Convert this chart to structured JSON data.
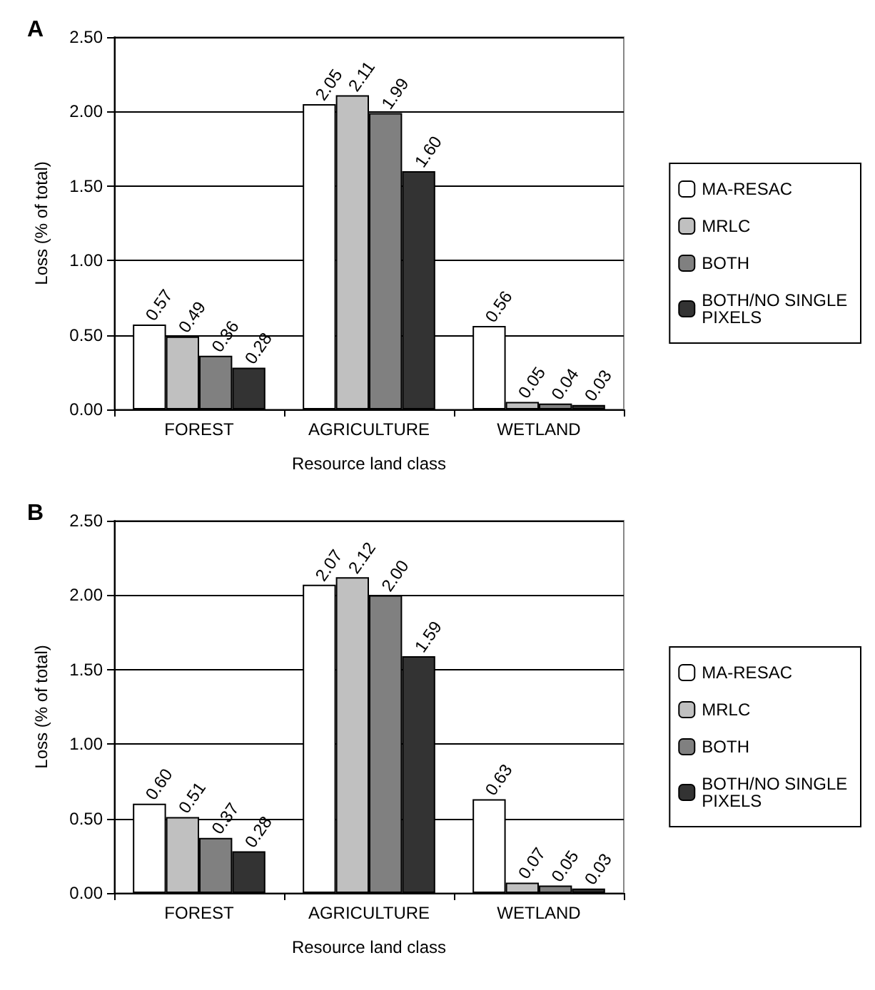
{
  "chart_data": [
    {
      "type": "bar",
      "title": "A",
      "xlabel": "Resource land class",
      "ylabel": "Loss (% of total)",
      "categories": [
        "FOREST",
        "AGRICULTURE",
        "WETLAND"
      ],
      "series": [
        {
          "name": "MA-RESAC",
          "color": "#ffffff",
          "values": [
            0.57,
            2.05,
            0.56
          ]
        },
        {
          "name": "MRLC",
          "color": "#c0c0c0",
          "values": [
            0.49,
            2.11,
            0.05
          ]
        },
        {
          "name": "BOTH",
          "color": "#808080",
          "values": [
            0.36,
            1.99,
            0.04
          ]
        },
        {
          "name": "BOTH/NO SINGLE PIXELS",
          "color": "#333333",
          "values": [
            0.28,
            1.6,
            0.03
          ]
        }
      ],
      "value_labels": [
        [
          "0.57",
          "2.05",
          "0.56"
        ],
        [
          "0.49",
          "2.11",
          "0.05"
        ],
        [
          "0.36",
          "1.99",
          "0.04"
        ],
        [
          "0.28",
          "1.60",
          "0.03"
        ]
      ],
      "ylim": [
        0,
        2.5
      ],
      "yticks": [
        {
          "value": 0,
          "label": "0.00"
        },
        {
          "value": 0.5,
          "label": "0.50"
        },
        {
          "value": 1,
          "label": "1.00"
        },
        {
          "value": 1.5,
          "label": "1.50"
        },
        {
          "value": 2,
          "label": "2.00"
        },
        {
          "value": 2.5,
          "label": "2.50"
        }
      ],
      "grid": "y",
      "legend": "right"
    },
    {
      "type": "bar",
      "title": "B",
      "xlabel": "Resource land class",
      "ylabel": "Loss (% of total)",
      "categories": [
        "FOREST",
        "AGRICULTURE",
        "WETLAND"
      ],
      "series": [
        {
          "name": "MA-RESAC",
          "color": "#ffffff",
          "values": [
            0.6,
            2.07,
            0.63
          ]
        },
        {
          "name": "MRLC",
          "color": "#c0c0c0",
          "values": [
            0.51,
            2.12,
            0.07
          ]
        },
        {
          "name": "BOTH",
          "color": "#808080",
          "values": [
            0.37,
            2.0,
            0.05
          ]
        },
        {
          "name": "BOTH/NO SINGLE PIXELS",
          "color": "#333333",
          "values": [
            0.28,
            1.59,
            0.03
          ]
        }
      ],
      "value_labels": [
        [
          "0.60",
          "2.07",
          "0.63"
        ],
        [
          "0.51",
          "2.12",
          "0.07"
        ],
        [
          "0.37",
          "2.00",
          "0.05"
        ],
        [
          "0.28",
          "1.59",
          "0.03"
        ]
      ],
      "ylim": [
        0,
        2.5
      ],
      "yticks": [
        {
          "value": 0,
          "label": "0.00"
        },
        {
          "value": 0.5,
          "label": "0.50"
        },
        {
          "value": 1,
          "label": "1.00"
        },
        {
          "value": 1.5,
          "label": "1.50"
        },
        {
          "value": 2,
          "label": "2.00"
        },
        {
          "value": 2.5,
          "label": "2.50"
        }
      ],
      "grid": "y",
      "legend": "right"
    }
  ]
}
